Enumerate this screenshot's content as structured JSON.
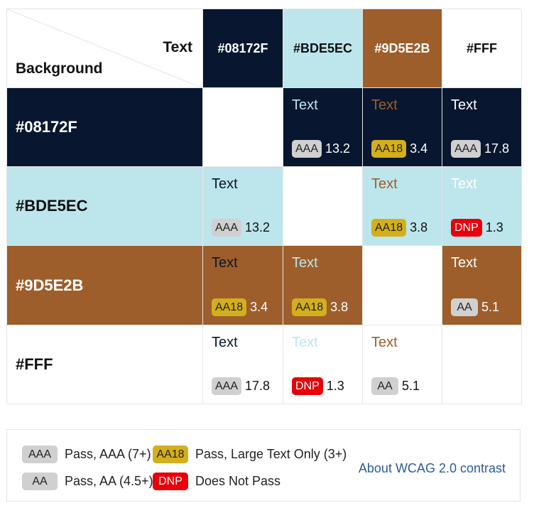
{
  "corner": {
    "text_label": "Text",
    "background_label": "Background"
  },
  "columns": [
    {
      "label": "#08172F",
      "bg": "#08172F",
      "fg": "#ffffff"
    },
    {
      "label": "#BDE5EC",
      "bg": "#BDE5EC",
      "fg": "#111111"
    },
    {
      "label": "#9D5E2B",
      "bg": "#9D5E2B",
      "fg": "#ffffff"
    },
    {
      "label": "#FFF",
      "bg": "#ffffff",
      "fg": "#111111"
    }
  ],
  "rows": [
    {
      "label": "#08172F",
      "bg": "#08172F",
      "fg": "#ffffff",
      "cells": [
        null,
        {
          "text": "Text",
          "text_color": "#BDE5EC",
          "badge": "AAA",
          "ratio": "13.2",
          "bg": "#08172F",
          "ratio_color": "#ffffff"
        },
        {
          "text": "Text",
          "text_color": "#9D5E2B",
          "badge": "AA18",
          "ratio": "3.4",
          "bg": "#08172F",
          "ratio_color": "#ffffff"
        },
        {
          "text": "Text",
          "text_color": "#ffffff",
          "badge": "AAA",
          "ratio": "17.8",
          "bg": "#08172F",
          "ratio_color": "#ffffff"
        }
      ]
    },
    {
      "label": "#BDE5EC",
      "bg": "#BDE5EC",
      "fg": "#111111",
      "cells": [
        {
          "text": "Text",
          "text_color": "#08172F",
          "badge": "AAA",
          "ratio": "13.2",
          "bg": "#BDE5EC",
          "ratio_color": "#111111"
        },
        null,
        {
          "text": "Text",
          "text_color": "#9D5E2B",
          "badge": "AA18",
          "ratio": "3.8",
          "bg": "#BDE5EC",
          "ratio_color": "#111111"
        },
        {
          "text": "Text",
          "text_color": "#ffffff",
          "badge": "DNP",
          "ratio": "1.3",
          "bg": "#BDE5EC",
          "ratio_color": "#111111"
        }
      ]
    },
    {
      "label": "#9D5E2B",
      "bg": "#9D5E2B",
      "fg": "#ffffff",
      "cells": [
        {
          "text": "Text",
          "text_color": "#08172F",
          "badge": "AA18",
          "ratio": "3.4",
          "bg": "#9D5E2B",
          "ratio_color": "#ffffff"
        },
        {
          "text": "Text",
          "text_color": "#BDE5EC",
          "badge": "AA18",
          "ratio": "3.8",
          "bg": "#9D5E2B",
          "ratio_color": "#ffffff"
        },
        null,
        {
          "text": "Text",
          "text_color": "#ffffff",
          "badge": "AA",
          "ratio": "5.1",
          "bg": "#9D5E2B",
          "ratio_color": "#ffffff"
        }
      ]
    },
    {
      "label": "#FFF",
      "bg": "#ffffff",
      "fg": "#111111",
      "cells": [
        {
          "text": "Text",
          "text_color": "#08172F",
          "badge": "AAA",
          "ratio": "17.8",
          "bg": "#ffffff",
          "ratio_color": "#111111"
        },
        {
          "text": "Text",
          "text_color": "#BDE5EC",
          "badge": "DNP",
          "ratio": "1.3",
          "bg": "#ffffff",
          "ratio_color": "#111111"
        },
        {
          "text": "Text",
          "text_color": "#9D5E2B",
          "badge": "AA",
          "ratio": "5.1",
          "bg": "#ffffff",
          "ratio_color": "#111111"
        },
        null
      ]
    }
  ],
  "badge_styles": {
    "AAA": {
      "bg": "#d0d0d0",
      "fg": "#222222"
    },
    "AA": {
      "bg": "#d0d0d0",
      "fg": "#222222"
    },
    "AA18": {
      "bg": "#d4af1c",
      "fg": "#222222"
    },
    "DNP": {
      "bg": "#e8000a",
      "fg": "#ffffff"
    }
  },
  "legend": {
    "items": [
      {
        "badge": "AAA",
        "desc": "Pass, AAA (7+)"
      },
      {
        "badge": "AA18",
        "desc": "Pass, Large Text Only (3+)"
      },
      {
        "badge": "AA",
        "desc": "Pass, AA (4.5+)"
      },
      {
        "badge": "DNP",
        "desc": "Does Not Pass"
      }
    ],
    "link": "About WCAG 2.0 contrast"
  }
}
